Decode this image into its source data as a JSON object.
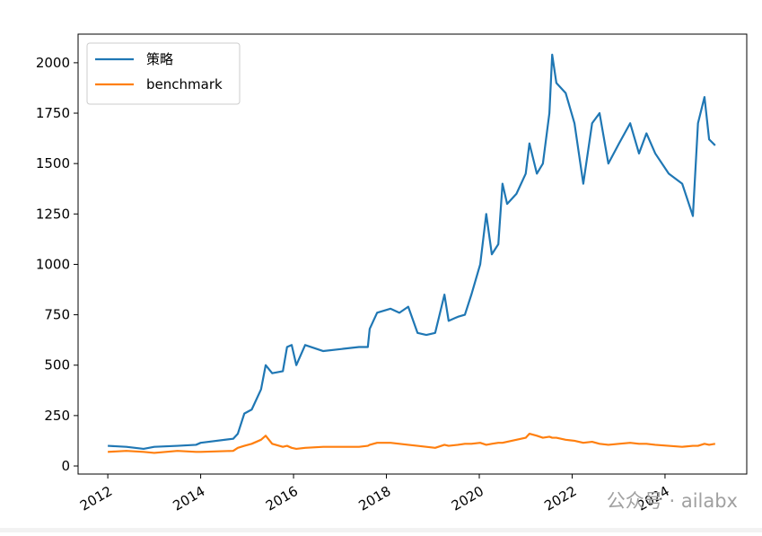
{
  "chart_data": {
    "type": "line",
    "x": [
      2012.0,
      2012.4,
      2012.77,
      2013.0,
      2013.5,
      2013.9,
      2014.0,
      2014.7,
      2014.8,
      2014.94,
      2015.1,
      2015.3,
      2015.4,
      2015.54,
      2015.77,
      2015.86,
      2015.96,
      2016.06,
      2016.25,
      2016.64,
      2017.41,
      2017.6,
      2017.64,
      2017.8,
      2018.09,
      2018.28,
      2018.47,
      2018.67,
      2018.86,
      2019.05,
      2019.25,
      2019.34,
      2019.54,
      2019.69,
      2019.83,
      2020.02,
      2020.15,
      2020.27,
      2020.41,
      2020.5,
      2020.6,
      2020.8,
      2021.0,
      2021.08,
      2021.24,
      2021.37,
      2021.51,
      2021.57,
      2021.66,
      2021.86,
      2022.05,
      2022.24,
      2022.43,
      2022.59,
      2022.78,
      2023.01,
      2023.25,
      2023.44,
      2023.6,
      2023.79,
      2024.08,
      2024.37,
      2024.6,
      2024.71,
      2024.85,
      2024.95,
      2025.08
    ],
    "series": [
      {
        "name": "策略",
        "color": "#1f77b4",
        "values": [
          100,
          95,
          85,
          95,
          100,
          105,
          115,
          135,
          160,
          260,
          280,
          380,
          500,
          460,
          470,
          590,
          600,
          500,
          600,
          570,
          590,
          590,
          680,
          760,
          780,
          760,
          790,
          660,
          650,
          660,
          850,
          720,
          740,
          750,
          850,
          1000,
          1250,
          1050,
          1100,
          1400,
          1300,
          1350,
          1450,
          1600,
          1450,
          1500,
          1750,
          2040,
          1900,
          1850,
          1700,
          1400,
          1700,
          1750,
          1500,
          1600,
          1700,
          1550,
          1650,
          1550,
          1450,
          1400,
          1240,
          1700,
          1830,
          1620,
          1590
        ]
      },
      {
        "name": "benchmark",
        "color": "#ff7f0e",
        "values": [
          70,
          75,
          70,
          65,
          75,
          70,
          70,
          75,
          90,
          100,
          110,
          130,
          150,
          110,
          95,
          100,
          90,
          85,
          90,
          95,
          95,
          100,
          105,
          115,
          115,
          110,
          105,
          100,
          95,
          90,
          105,
          100,
          105,
          110,
          110,
          115,
          105,
          110,
          115,
          115,
          120,
          130,
          140,
          160,
          150,
          140,
          145,
          140,
          140,
          130,
          125,
          115,
          120,
          110,
          105,
          110,
          115,
          110,
          110,
          105,
          100,
          95,
          100,
          100,
          110,
          105,
          110
        ]
      }
    ],
    "xlim": [
      2011.36,
      2025.76
    ],
    "xticks": [
      2012,
      2014,
      2016,
      2018,
      2020,
      2022,
      2024
    ],
    "ylim": [
      -40,
      2142
    ],
    "yticks": [
      0,
      250,
      500,
      750,
      1000,
      1250,
      1500,
      1750,
      2000
    ],
    "grid": false,
    "legend": "upper-left",
    "watermark": "公众号 · ailabx"
  }
}
